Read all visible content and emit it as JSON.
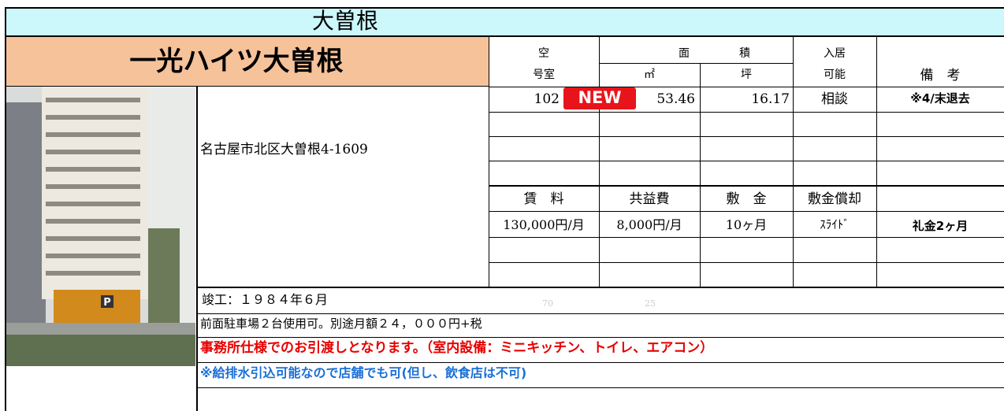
{
  "banner": "大曽根",
  "building_name": "一光ハイツ大曽根",
  "address": "名古屋市北区大曽根4-1609",
  "photo_sign": "P",
  "unit_header": {
    "vacant": [
      "空",
      "号室"
    ],
    "area": [
      "面",
      "積"
    ],
    "area_units": [
      "㎡",
      "坪"
    ],
    "move_in": [
      "入居",
      "可能"
    ],
    "remarks": "備　考"
  },
  "units": [
    {
      "room": "102",
      "badge": "NEW",
      "sqm": "53.46",
      "tsubo": "16.17",
      "move_in": "相談",
      "note": "※4/末退去"
    }
  ],
  "fee_header": [
    "賃　料",
    "共益費",
    "敷　金",
    "敷金償却"
  ],
  "fees": [
    {
      "rent": "130,000円/月",
      "common": "8,000円/月",
      "deposit": "10ヶ月",
      "amortization": "ｽﾗｲﾄﾞ",
      "key_money": "礼金2ヶ月"
    }
  ],
  "faint": [
    "70",
    "25"
  ],
  "notes": [
    "竣工：１９８４年６月",
    "前面駐車場２台使用可。別途月額２４，０００円+税",
    "事務所仕様でのお引渡しとなります。（室内設備：ミニキッチン、トイレ、エアコン）",
    "※給排水引込可能なので店舗でも可(但し、飲食店は不可)"
  ]
}
